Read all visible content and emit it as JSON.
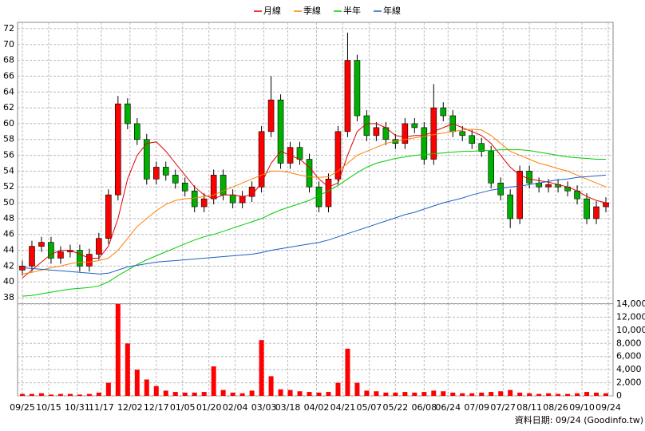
{
  "chart_data": [
    {
      "type": "candlestick",
      "x": [
        0,
        4,
        8,
        12,
        16,
        20,
        24,
        28,
        32,
        36,
        40,
        44,
        48,
        52,
        56,
        60,
        64,
        68,
        72,
        76,
        80,
        84,
        88,
        92,
        96,
        100,
        104,
        108,
        112,
        116,
        120,
        124,
        128,
        132,
        136,
        140,
        144,
        148,
        152,
        156,
        160,
        164,
        168,
        172,
        176,
        180,
        184,
        188,
        192,
        196,
        200,
        204,
        208,
        212,
        216,
        220,
        224,
        228,
        232,
        236,
        240,
        244
      ],
      "open": [
        41.5,
        42,
        44.5,
        45,
        43,
        43.8,
        44,
        42,
        43.5,
        45.5,
        51,
        62.5,
        60,
        58,
        53,
        54.5,
        53.5,
        52.5,
        51.5,
        49.5,
        50.5,
        53.5,
        51,
        50,
        50.8,
        52,
        59,
        63,
        55,
        57,
        55.5,
        52,
        49.5,
        53,
        59,
        68,
        61,
        58.5,
        59.5,
        58,
        57.5,
        60,
        59.5,
        55.5,
        62,
        61,
        59,
        58.5,
        57.5,
        56.5,
        52.5,
        51,
        48,
        54,
        52.5,
        52,
        52.3,
        52,
        51.5,
        50.5,
        48,
        49.5
      ],
      "high": [
        42.7,
        45.2,
        45.7,
        45.7,
        44.5,
        44.7,
        44.7,
        44.2,
        46.2,
        51.7,
        63.5,
        63.2,
        60.7,
        58.7,
        55.2,
        55.2,
        54.2,
        53.2,
        52.2,
        51.2,
        54.2,
        54.2,
        51.7,
        51.5,
        52.7,
        59.7,
        66,
        63.7,
        57.7,
        57.7,
        56.2,
        52.7,
        53.7,
        59.7,
        71.5,
        68.7,
        61.7,
        60.2,
        60.2,
        58.7,
        60.7,
        60.7,
        60.2,
        65,
        62.7,
        61.7,
        59.7,
        59.2,
        58.2,
        57.2,
        53.2,
        51.7,
        54.7,
        54.7,
        53.2,
        53,
        53,
        52.7,
        52.2,
        51.2,
        50.2,
        50.7
      ],
      "low": [
        40.8,
        41.3,
        43.8,
        42.3,
        42.3,
        43.1,
        41.3,
        41.3,
        42.8,
        44.8,
        50.3,
        59.3,
        57.3,
        52.3,
        52.3,
        52.8,
        51.8,
        50.8,
        48.8,
        48.8,
        49.8,
        50.3,
        49.3,
        49.3,
        50.1,
        51.3,
        58.3,
        54.3,
        54.3,
        54.8,
        51.3,
        48.8,
        48.8,
        52.3,
        58.3,
        60.3,
        57.8,
        57.8,
        57.3,
        56.8,
        56.8,
        58.8,
        54.8,
        54.8,
        60.3,
        58.3,
        57.8,
        56.8,
        55.8,
        51.8,
        50.3,
        46.8,
        47.3,
        51.8,
        51.3,
        51.3,
        51.3,
        50.8,
        49.8,
        47.3,
        47.3,
        48.8
      ],
      "close": [
        42,
        44.5,
        45,
        43,
        43.8,
        44,
        42,
        43.5,
        45.5,
        51,
        62.5,
        60,
        58,
        53,
        54.5,
        53.5,
        52.5,
        51.5,
        49.5,
        50.5,
        53.5,
        51,
        50,
        50.8,
        52,
        59,
        63,
        55,
        57,
        55.5,
        52,
        49.5,
        53,
        59,
        68,
        61,
        58.5,
        59.5,
        58,
        57.5,
        60,
        59.5,
        55.5,
        62,
        61,
        59,
        58.5,
        57.5,
        56.5,
        52.5,
        51,
        48,
        54,
        52.5,
        52,
        52.3,
        52,
        51.5,
        50.5,
        48,
        49.5,
        50
      ],
      "up_color": "#ff0000",
      "down_color": "#00b000",
      "series": [
        {
          "name": "月線",
          "color": "#e00000",
          "values": [
            40.5,
            41.5,
            42.5,
            43.5,
            44,
            44,
            43.5,
            43,
            43,
            44.5,
            48,
            53,
            56,
            57.5,
            57.7,
            56.5,
            55,
            53.5,
            52,
            51,
            50.5,
            51,
            51,
            50.8,
            51,
            52.5,
            55,
            56.5,
            56,
            55.5,
            54.5,
            53,
            52,
            52.5,
            56,
            59,
            60,
            60,
            59.5,
            58.5,
            58.3,
            58.5,
            58.5,
            59,
            59.5,
            60,
            59.5,
            59,
            58.5,
            57.5,
            56,
            54.5,
            53.5,
            53,
            52.8,
            52.6,
            52.3,
            52,
            51.5,
            50.8,
            50.3,
            50
          ]
        },
        {
          "name": "季線",
          "color": "#ff7f00",
          "values": [
            41,
            41.2,
            41.5,
            41.8,
            42,
            42.3,
            42.5,
            42.5,
            42.7,
            43,
            44,
            45.5,
            47,
            48,
            49,
            49.8,
            50.3,
            50.5,
            50.6,
            50.8,
            51,
            51.5,
            52,
            52.5,
            53,
            53.5,
            54,
            54,
            53.8,
            53.5,
            53.3,
            53.2,
            53.3,
            54,
            55,
            56,
            56.5,
            57,
            57.5,
            57.8,
            58,
            58.2,
            58.4,
            58.6,
            58.8,
            59,
            59.2,
            59.3,
            59.2,
            58.5,
            57.5,
            56.5,
            56,
            55.5,
            55,
            54.7,
            54.3,
            54,
            53.5,
            53,
            52.5,
            52
          ]
        },
        {
          "name": "半年",
          "color": "#00cc00",
          "values": [
            38.2,
            38.3,
            38.5,
            38.7,
            38.9,
            39.1,
            39.2,
            39.3,
            39.5,
            40,
            40.8,
            41.5,
            42.2,
            42.8,
            43.3,
            43.8,
            44.3,
            44.8,
            45.3,
            45.7,
            46,
            46.4,
            46.8,
            47.2,
            47.6,
            48,
            48.6,
            49.1,
            49.5,
            49.9,
            50.3,
            50.9,
            51.5,
            52.2,
            53,
            53.8,
            54.5,
            55,
            55.3,
            55.6,
            55.8,
            56,
            56.1,
            56.2,
            56.3,
            56.4,
            56.5,
            56.5,
            56.6,
            56.6,
            56.7,
            56.7,
            56.7,
            56.6,
            56.4,
            56.2,
            56,
            55.8,
            55.7,
            55.6,
            55.5,
            55.5
          ]
        },
        {
          "name": "年線",
          "color": "#1f5fbf",
          "values": [
            41.8,
            41.7,
            41.6,
            41.5,
            41.4,
            41.3,
            41.2,
            41.1,
            41,
            41.1,
            41.5,
            41.9,
            42.1,
            42.3,
            42.5,
            42.6,
            42.7,
            42.8,
            42.9,
            43,
            43.1,
            43.2,
            43.3,
            43.4,
            43.5,
            43.7,
            44,
            44.2,
            44.4,
            44.6,
            44.8,
            45,
            45.3,
            45.7,
            46.1,
            46.5,
            46.9,
            47.3,
            47.7,
            48.1,
            48.5,
            48.8,
            49.2,
            49.6,
            50,
            50.3,
            50.6,
            51,
            51.3,
            51.6,
            51.8,
            52,
            52.1,
            52.3,
            52.5,
            52.7,
            52.9,
            53,
            53.2,
            53.3,
            53.4,
            53.5
          ]
        }
      ],
      "xlim": [
        -2,
        247
      ],
      "xticks": [
        0,
        11,
        23,
        33,
        45,
        56,
        67,
        78,
        89,
        101,
        111,
        123,
        134,
        145,
        156,
        168,
        178,
        190,
        201,
        212,
        223,
        234,
        245
      ],
      "ylim": [
        37.3,
        72.8
      ],
      "yticks": [
        38,
        40,
        42,
        44,
        46,
        48,
        50,
        52,
        54,
        56,
        58,
        60,
        62,
        64,
        66,
        68,
        70,
        72
      ],
      "grid": true
    },
    {
      "type": "bar",
      "x": [
        0,
        4,
        8,
        12,
        16,
        20,
        24,
        28,
        32,
        36,
        40,
        44,
        48,
        52,
        56,
        60,
        64,
        68,
        72,
        76,
        80,
        84,
        88,
        92,
        96,
        100,
        104,
        108,
        112,
        116,
        120,
        124,
        128,
        132,
        136,
        140,
        144,
        148,
        152,
        156,
        160,
        164,
        168,
        172,
        176,
        180,
        184,
        188,
        192,
        196,
        200,
        204,
        208,
        212,
        216,
        220,
        224,
        228,
        232,
        236,
        240,
        244
      ],
      "values": [
        300,
        300,
        400,
        200,
        300,
        300,
        200,
        300,
        500,
        2000,
        14000,
        8000,
        4000,
        2500,
        1500,
        800,
        600,
        500,
        500,
        600,
        4500,
        900,
        500,
        400,
        800,
        8500,
        3000,
        1000,
        900,
        700,
        600,
        500,
        600,
        2000,
        7200,
        2000,
        800,
        700,
        500,
        500,
        600,
        500,
        600,
        800,
        700,
        500,
        400,
        400,
        500,
        600,
        700,
        900,
        500,
        400,
        300,
        400,
        300,
        300,
        400,
        600,
        500,
        400
      ],
      "color": "#ff0000",
      "xlim": [
        -2,
        247
      ],
      "xticks": [
        {
          "value": 0,
          "label": "09/25"
        },
        {
          "value": 11,
          "label": "10/15"
        },
        {
          "value": 23,
          "label": "10/31"
        },
        {
          "value": 33,
          "label": "11/17"
        },
        {
          "value": 45,
          "label": "12/02"
        },
        {
          "value": 56,
          "label": "12/17"
        },
        {
          "value": 67,
          "label": "01/05"
        },
        {
          "value": 78,
          "label": "01/20"
        },
        {
          "value": 89,
          "label": "02/04"
        },
        {
          "value": 101,
          "label": "03/03"
        },
        {
          "value": 111,
          "label": "03/18"
        },
        {
          "value": 123,
          "label": "04/02"
        },
        {
          "value": 134,
          "label": "04/21"
        },
        {
          "value": 145,
          "label": "05/07"
        },
        {
          "value": 156,
          "label": "05/22"
        },
        {
          "value": 168,
          "label": "06/08"
        },
        {
          "value": 178,
          "label": "06/24"
        },
        {
          "value": 190,
          "label": "07/09"
        },
        {
          "value": 201,
          "label": "07/27"
        },
        {
          "value": 212,
          "label": "08/11"
        },
        {
          "value": 223,
          "label": "08/26"
        },
        {
          "value": 234,
          "label": "09/10"
        },
        {
          "value": 245,
          "label": "09/24"
        }
      ],
      "ylim": [
        0,
        14000
      ],
      "yticks": [
        0,
        {
          "value": 2000,
          "label": "2,000"
        },
        {
          "value": 4000,
          "label": "4,000"
        },
        {
          "value": 6000,
          "label": "6,000"
        },
        {
          "value": 8000,
          "label": "8,000"
        },
        {
          "value": 10000,
          "label": "10,000"
        },
        {
          "value": 12000,
          "label": "12,000"
        },
        {
          "value": 14000,
          "label": "14,000"
        }
      ],
      "grid": true
    }
  ],
  "footer": "資料日期: 09/24 (Goodinfo.tw)"
}
